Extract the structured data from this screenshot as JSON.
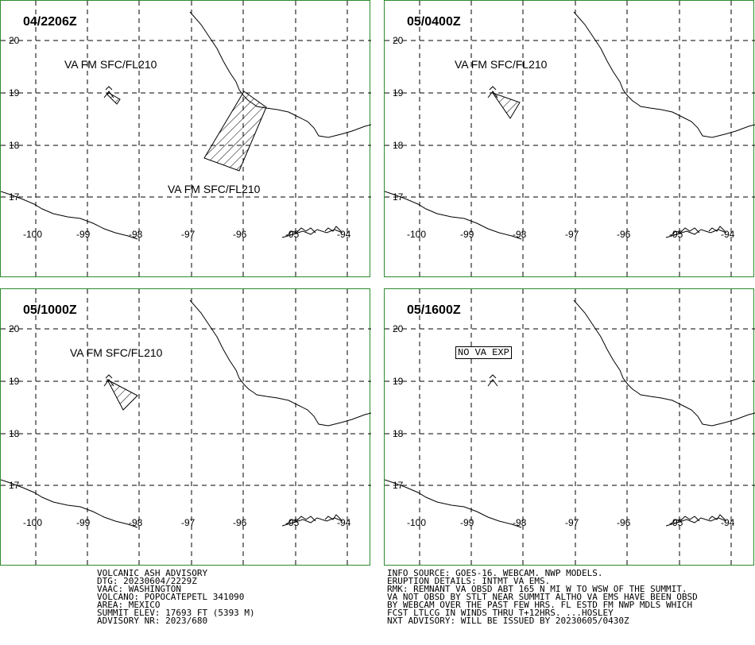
{
  "panels": [
    {
      "title": "04/2206Z",
      "labels": [
        "VA FM SFC/FL210",
        "VA FM SFC/FL210"
      ],
      "boxed": ""
    },
    {
      "title": "05/0400Z",
      "labels": [
        "VA FM SFC/FL210"
      ],
      "boxed": ""
    },
    {
      "title": "05/1000Z",
      "labels": [
        "VA FM SFC/FL210"
      ],
      "boxed": ""
    },
    {
      "title": "05/1600Z",
      "labels": [],
      "boxed": "NO VA EXP"
    }
  ],
  "axes": {
    "lat": [
      "20",
      "19",
      "18",
      "17"
    ],
    "lon": [
      "-100",
      "-99",
      "-98",
      "-97",
      "-96",
      "-95",
      "-94"
    ]
  },
  "colors": {
    "frame": "#2e8b2e",
    "lines": "#000000"
  },
  "advisory_left": [
    "VOLCANIC ASH ADVISORY",
    "DTG: 20230604/2229Z",
    "VAAC: WASHINGTON",
    "VOLCANO: POPOCATEPETL 341090",
    "AREA: MEXICO",
    "SUMMIT ELEV: 17693 FT (5393 M)",
    "ADVISORY NR: 2023/680"
  ],
  "advisory_right": [
    "INFO SOURCE: GOES-16. WEBCAM. NWP MODELS.",
    "ERUPTION DETAILS: INTMT VA EMS.",
    "RMK: REMNANT VA OBSD ABT 165 N MI W TO WSW OF THE SUMMIT.",
    "VA NOT OBSD BY STLT NEAR SUMMIT ALTHO VA EMS HAVE BEEN OBSD",
    "BY WEBCAM OVER THE PAST FEW HRS. FL ESTD FM NWP MDLS WHICH",
    "FCST LTLCG IN WINDS THRU T+12HRS. ...HOSLEY",
    "NXT ADVISORY: WILL BE ISSUED BY 20230605/0430Z"
  ]
}
